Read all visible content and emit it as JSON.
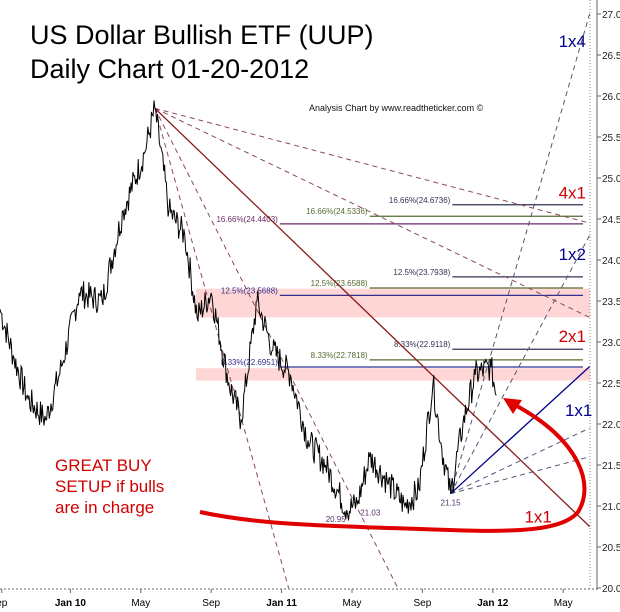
{
  "title_line1": "US Dollar Bullish ETF (UUP)",
  "title_line2": "Daily Chart 01-20-2012",
  "credit": "Analysis Chart by www.readtheticker.com ©",
  "annotation": [
    "GREAT BUY",
    "SETUP if bulls",
    "are in charge"
  ],
  "colors": {
    "price": "#000000",
    "gann_red": "#8b1a1a",
    "gann_blue": "#00008b",
    "note": "#d00000",
    "band": "#ffd6d6"
  },
  "chart_data": {
    "type": "line",
    "title": "US Dollar Bullish ETF (UUP) Daily Chart 01-20-2012",
    "x_unit": "months since Sep 2009",
    "xlim": [
      0,
      33.5
    ],
    "ylim": [
      20.0,
      27.0
    ],
    "x_ticks": [
      {
        "t": 0.1,
        "label": "ep"
      },
      {
        "t": 4,
        "label": "Jan 10"
      },
      {
        "t": 8,
        "label": "May"
      },
      {
        "t": 12,
        "label": "Sep"
      },
      {
        "t": 16,
        "label": "Jan 11"
      },
      {
        "t": 20,
        "label": "May"
      },
      {
        "t": 24,
        "label": "Sep"
      },
      {
        "t": 28,
        "label": "Jan 12"
      },
      {
        "t": 32,
        "label": "May"
      }
    ],
    "y_ticks": [
      "20.0",
      "20.5",
      "21.0",
      "21.5",
      "22.0",
      "22.5",
      "23.0",
      "23.5",
      "24.0",
      "24.5",
      "25.0",
      "25.5",
      "26.0",
      "26.5",
      "27.0"
    ],
    "price_keypoints": [
      [
        0,
        23.4
      ],
      [
        0.8,
        22.8
      ],
      [
        1.6,
        22.3
      ],
      [
        2.6,
        22.05
      ],
      [
        3.5,
        22.7
      ],
      [
        4.5,
        23.6
      ],
      [
        5.8,
        23.5
      ],
      [
        7,
        24.6
      ],
      [
        8.2,
        25.3
      ],
      [
        8.8,
        25.85
      ],
      [
        9.6,
        24.6
      ],
      [
        10.5,
        24.3
      ],
      [
        11.2,
        23.3
      ],
      [
        12,
        23.6
      ],
      [
        13,
        22.5
      ],
      [
        13.7,
        22.05
      ],
      [
        14.6,
        23.5
      ],
      [
        15.5,
        22.9
      ],
      [
        16.5,
        22.6
      ],
      [
        17.5,
        21.8
      ],
      [
        18.5,
        21.5
      ],
      [
        19.7,
        20.95
      ],
      [
        20.3,
        21.03
      ],
      [
        21,
        21.6
      ],
      [
        22,
        21.3
      ],
      [
        23,
        21.0
      ],
      [
        23.8,
        21.2
      ],
      [
        24.6,
        22.5
      ],
      [
        25.1,
        21.7
      ],
      [
        25.6,
        21.15
      ],
      [
        26.3,
        22.0
      ],
      [
        27,
        22.6
      ],
      [
        27.9,
        22.7
      ],
      [
        28.2,
        22.35
      ]
    ],
    "point_labels": [
      {
        "t": 19.7,
        "p": 20.95,
        "label": "20.95"
      },
      {
        "t": 20.3,
        "p": 21.03,
        "label": "21.03"
      },
      {
        "t": 25.6,
        "p": 21.15,
        "label": "21.15"
      }
    ],
    "fib_levels": [
      {
        "label": "16.66%(24.6736)",
        "value": 24.6736,
        "start": 25.7,
        "color": "#333355"
      },
      {
        "label": "16.66%(24.5336)",
        "value": 24.5336,
        "start": 21,
        "color": "#556b2f"
      },
      {
        "label": "16.66%(24.4403)",
        "value": 24.4403,
        "start": 15.9,
        "color": "#6a2a6a"
      },
      {
        "label": "12.5%(23.7938)",
        "value": 23.7938,
        "start": 25.7,
        "color": "#333355"
      },
      {
        "label": "12.5%(23.6588)",
        "value": 23.6588,
        "start": 21,
        "color": "#556b2f"
      },
      {
        "label": "12.5%(23.5688)",
        "value": 23.5688,
        "start": 15.9,
        "color": "#303090"
      },
      {
        "label": "8.33%(22.9118)",
        "value": 22.9118,
        "start": 25.7,
        "color": "#333355"
      },
      {
        "label": "8.33%(22.7818)",
        "value": 22.7818,
        "start": 21,
        "color": "#556b2f"
      },
      {
        "label": "8.33%(22.6951)",
        "value": 22.6951,
        "start": 15.9,
        "color": "#303090"
      }
    ],
    "bands": [
      [
        23.3,
        23.65
      ],
      [
        22.53,
        22.68
      ]
    ],
    "gann_from_high": {
      "origin": [
        8.8,
        25.85
      ],
      "solid_end": [
        33.5,
        20.75
      ],
      "dashed_ends": [
        [
          33.5,
          24.45
        ],
        [
          33.5,
          23.3
        ],
        [
          16.4,
          20.0
        ],
        [
          22.6,
          20.0
        ]
      ]
    },
    "gann_from_low": {
      "origin": [
        25.6,
        21.15
      ],
      "solid_end": [
        33.5,
        22.7
      ],
      "dashed_ends": [
        [
          33.5,
          27.0
        ],
        [
          33.5,
          24.3
        ],
        [
          33.5,
          21.95
        ],
        [
          33.5,
          21.6
        ]
      ]
    },
    "gann_tags": [
      {
        "label": "1x4",
        "t": 33.3,
        "p": 26.6,
        "color": "#00008b"
      },
      {
        "label": "4x1",
        "t": 33.3,
        "p": 24.75,
        "color": "#cc0000"
      },
      {
        "label": "1x2",
        "t": 33.3,
        "p": 24.0,
        "color": "#00008b"
      },
      {
        "label": "2x1",
        "t": 33.5,
        "p": 23.0,
        "color": "#cc0000"
      },
      {
        "label": "1x1",
        "t": 32.1,
        "p": 22.1,
        "color": "#00008b"
      },
      {
        "label": "1x1",
        "t": 29.8,
        "p": 20.8,
        "color": "#cc0000"
      }
    ]
  }
}
